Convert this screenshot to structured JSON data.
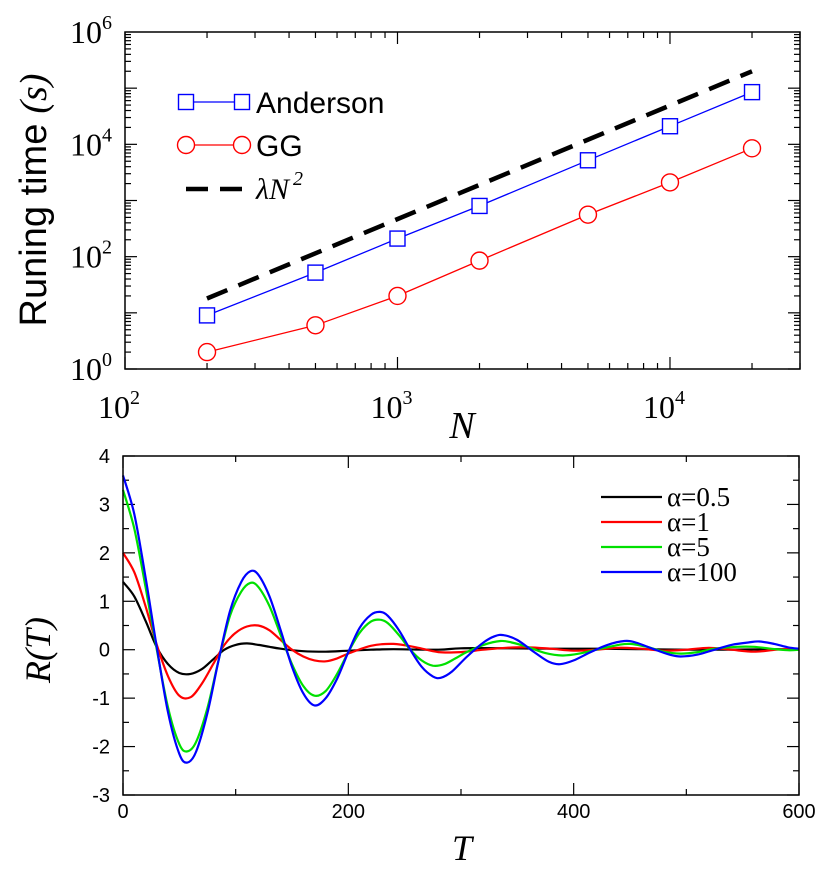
{
  "chart_data": [
    {
      "type": "line",
      "ylabel_text": "Runing time",
      "ylabel_unit": "(s)",
      "xlabel": "N",
      "xscale": "log",
      "yscale": "log",
      "xlim": [
        100,
        30000
      ],
      "ylim": [
        1,
        1000000
      ],
      "xticks": [
        {
          "value": 100,
          "base": "10",
          "exp": "2"
        },
        {
          "value": 1000,
          "base": "10",
          "exp": "3"
        },
        {
          "value": 10000,
          "base": "10",
          "exp": "4"
        }
      ],
      "yticks": [
        {
          "value": 1,
          "base": "10",
          "exp": "0"
        },
        {
          "value": 100,
          "base": "10",
          "exp": "2"
        },
        {
          "value": 10000,
          "base": "10",
          "exp": "4"
        },
        {
          "value": 1000000,
          "base": "10",
          "exp": "6"
        }
      ],
      "legend_position": "top-left",
      "series": [
        {
          "name": "Anderson",
          "color": "#0000ff",
          "marker": "square",
          "style": "solid",
          "x": [
            200,
            500,
            1000,
            2000,
            5000,
            10000,
            20000
          ],
          "y": [
            9,
            52,
            210,
            800,
            5200,
            21000,
            85000
          ]
        },
        {
          "name": "GG",
          "color": "#ff0000",
          "marker": "circle",
          "style": "solid",
          "x": [
            200,
            500,
            1000,
            2000,
            5000,
            10000,
            20000
          ],
          "y": [
            2,
            6,
            20,
            85,
            560,
            2100,
            8500
          ]
        },
        {
          "name": "λN",
          "name_sup": "2",
          "color": "#000000",
          "marker": "none",
          "style": "dashed",
          "x": [
            200,
            20000
          ],
          "y": [
            18,
            200000
          ]
        }
      ]
    },
    {
      "type": "line",
      "xlabel": "T",
      "ylabel": "R(T)",
      "xlim": [
        0,
        600
      ],
      "ylim": [
        -3,
        4
      ],
      "xticks": [
        "0",
        "200",
        "400",
        "600"
      ],
      "yticks": [
        "-3",
        "-2",
        "-1",
        "0",
        "1",
        "2",
        "3",
        "4"
      ],
      "legend_position": "top-right",
      "series": [
        {
          "name": "α=0.5",
          "color": "#000000",
          "points": [
            [
              0,
              1.4
            ],
            [
              10,
              1.1
            ],
            [
              20,
              0.6
            ],
            [
              30,
              0.05
            ],
            [
              40,
              -0.3
            ],
            [
              50,
              -0.48
            ],
            [
              60,
              -0.5
            ],
            [
              70,
              -0.4
            ],
            [
              80,
              -0.2
            ],
            [
              90,
              0.0
            ],
            [
              100,
              0.1
            ],
            [
              110,
              0.13
            ],
            [
              120,
              0.1
            ],
            [
              130,
              0.06
            ],
            [
              140,
              0.02
            ],
            [
              160,
              -0.03
            ],
            [
              180,
              -0.04
            ],
            [
              200,
              -0.02
            ],
            [
              220,
              0.0
            ],
            [
              240,
              0.01
            ],
            [
              280,
              0.0
            ],
            [
              300,
              0.03
            ],
            [
              340,
              0.03
            ],
            [
              380,
              0.02
            ],
            [
              420,
              0.02
            ],
            [
              460,
              0.01
            ],
            [
              500,
              0.0
            ],
            [
              540,
              0.0
            ],
            [
              580,
              0.01
            ],
            [
              600,
              0.0
            ]
          ]
        },
        {
          "name": "α=1",
          "color": "#ff0000",
          "points": [
            [
              0,
              2.0
            ],
            [
              10,
              1.6
            ],
            [
              20,
              0.9
            ],
            [
              30,
              0.1
            ],
            [
              40,
              -0.55
            ],
            [
              50,
              -0.95
            ],
            [
              60,
              -0.98
            ],
            [
              70,
              -0.7
            ],
            [
              80,
              -0.3
            ],
            [
              90,
              0.1
            ],
            [
              100,
              0.35
            ],
            [
              110,
              0.48
            ],
            [
              120,
              0.5
            ],
            [
              130,
              0.4
            ],
            [
              140,
              0.2
            ],
            [
              150,
              0.0
            ],
            [
              160,
              -0.14
            ],
            [
              170,
              -0.22
            ],
            [
              180,
              -0.24
            ],
            [
              190,
              -0.18
            ],
            [
              200,
              -0.08
            ],
            [
              220,
              0.08
            ],
            [
              240,
              0.12
            ],
            [
              260,
              0.05
            ],
            [
              280,
              -0.05
            ],
            [
              300,
              -0.05
            ],
            [
              320,
              0.0
            ],
            [
              340,
              0.04
            ],
            [
              360,
              0.05
            ],
            [
              380,
              0.02
            ],
            [
              400,
              -0.02
            ],
            [
              420,
              0.0
            ],
            [
              440,
              0.04
            ],
            [
              460,
              0.02
            ],
            [
              480,
              -0.02
            ],
            [
              500,
              0.0
            ],
            [
              520,
              0.04
            ],
            [
              540,
              0.0
            ],
            [
              560,
              -0.04
            ],
            [
              580,
              0.0
            ],
            [
              600,
              0.02
            ]
          ]
        },
        {
          "name": "α=5",
          "color": "#00e000",
          "points": [
            [
              0,
              3.3
            ],
            [
              10,
              2.5
            ],
            [
              20,
              1.3
            ],
            [
              30,
              0.0
            ],
            [
              40,
              -1.2
            ],
            [
              50,
              -1.95
            ],
            [
              57,
              -2.1
            ],
            [
              65,
              -1.9
            ],
            [
              75,
              -1.2
            ],
            [
              85,
              -0.2
            ],
            [
              95,
              0.7
            ],
            [
              105,
              1.2
            ],
            [
              113,
              1.38
            ],
            [
              120,
              1.3
            ],
            [
              130,
              0.9
            ],
            [
              140,
              0.3
            ],
            [
              150,
              -0.3
            ],
            [
              160,
              -0.75
            ],
            [
              170,
              -0.95
            ],
            [
              180,
              -0.85
            ],
            [
              190,
              -0.5
            ],
            [
              200,
              -0.05
            ],
            [
              210,
              0.35
            ],
            [
              220,
              0.58
            ],
            [
              228,
              0.62
            ],
            [
              235,
              0.55
            ],
            [
              245,
              0.3
            ],
            [
              255,
              0.0
            ],
            [
              265,
              -0.22
            ],
            [
              275,
              -0.33
            ],
            [
              285,
              -0.3
            ],
            [
              295,
              -0.18
            ],
            [
              305,
              -0.05
            ],
            [
              320,
              0.1
            ],
            [
              335,
              0.18
            ],
            [
              345,
              0.15
            ],
            [
              360,
              0.05
            ],
            [
              375,
              -0.07
            ],
            [
              390,
              -0.12
            ],
            [
              405,
              -0.08
            ],
            [
              420,
              0.0
            ],
            [
              440,
              0.1
            ],
            [
              450,
              0.12
            ],
            [
              465,
              0.06
            ],
            [
              480,
              -0.04
            ],
            [
              495,
              -0.08
            ],
            [
              510,
              -0.05
            ],
            [
              525,
              0.02
            ],
            [
              545,
              0.06
            ],
            [
              560,
              0.06
            ],
            [
              575,
              0.02
            ],
            [
              590,
              -0.01
            ],
            [
              600,
              0.0
            ]
          ]
        },
        {
          "name": "α=100",
          "color": "#0000ff",
          "points": [
            [
              0,
              3.6
            ],
            [
              10,
              2.8
            ],
            [
              20,
              1.5
            ],
            [
              30,
              0.05
            ],
            [
              40,
              -1.3
            ],
            [
              50,
              -2.15
            ],
            [
              57,
              -2.33
            ],
            [
              65,
              -2.1
            ],
            [
              75,
              -1.3
            ],
            [
              85,
              -0.2
            ],
            [
              95,
              0.8
            ],
            [
              105,
              1.4
            ],
            [
              113,
              1.62
            ],
            [
              120,
              1.55
            ],
            [
              130,
              1.1
            ],
            [
              140,
              0.4
            ],
            [
              150,
              -0.35
            ],
            [
              160,
              -0.9
            ],
            [
              170,
              -1.15
            ],
            [
              180,
              -1.0
            ],
            [
              190,
              -0.6
            ],
            [
              200,
              -0.05
            ],
            [
              210,
              0.45
            ],
            [
              220,
              0.72
            ],
            [
              228,
              0.78
            ],
            [
              235,
              0.7
            ],
            [
              245,
              0.4
            ],
            [
              255,
              0.0
            ],
            [
              265,
              -0.35
            ],
            [
              275,
              -0.55
            ],
            [
              282,
              -0.58
            ],
            [
              292,
              -0.45
            ],
            [
              305,
              -0.15
            ],
            [
              320,
              0.15
            ],
            [
              330,
              0.28
            ],
            [
              338,
              0.3
            ],
            [
              350,
              0.2
            ],
            [
              365,
              -0.05
            ],
            [
              378,
              -0.25
            ],
            [
              388,
              -0.3
            ],
            [
              400,
              -0.22
            ],
            [
              415,
              -0.05
            ],
            [
              430,
              0.1
            ],
            [
              445,
              0.18
            ],
            [
              455,
              0.15
            ],
            [
              470,
              0.02
            ],
            [
              485,
              -0.1
            ],
            [
              495,
              -0.14
            ],
            [
              510,
              -0.1
            ],
            [
              525,
              0.0
            ],
            [
              540,
              0.1
            ],
            [
              555,
              0.15
            ],
            [
              565,
              0.17
            ],
            [
              578,
              0.12
            ],
            [
              590,
              0.05
            ],
            [
              600,
              0.02
            ]
          ]
        }
      ]
    }
  ]
}
